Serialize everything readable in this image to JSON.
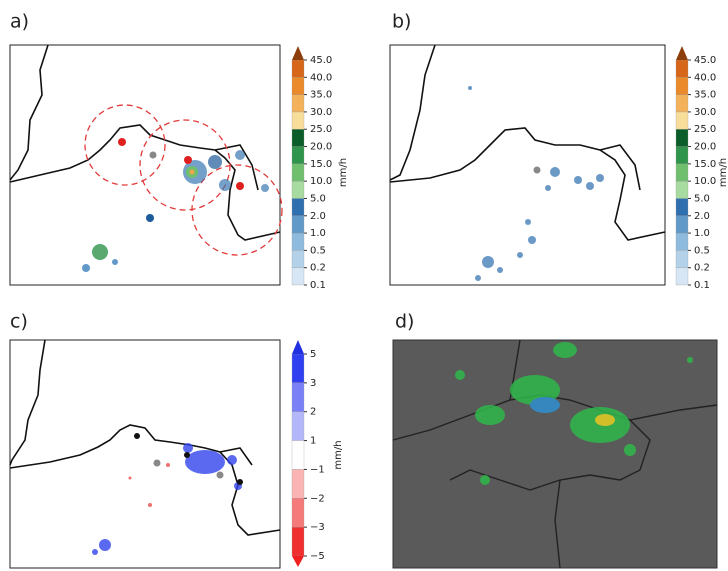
{
  "panels": [
    {
      "label": "a)"
    },
    {
      "label": "b)"
    },
    {
      "label": "c)"
    },
    {
      "label": "d)"
    }
  ],
  "colorbar_precip": {
    "unit": "mm/h",
    "ticks": [
      "0.1",
      "0.2",
      "0.5",
      "1.0",
      "2.0",
      "5.0",
      "10.0",
      "15.0",
      "20.0",
      "25.0",
      "30.0",
      "35.0",
      "40.0",
      "45.0"
    ]
  },
  "colorbar_diff": {
    "unit": "mm/h",
    "ticks": [
      "5",
      "3",
      "2",
      "1",
      "−1",
      "−2",
      "−3",
      "−5"
    ]
  }
}
